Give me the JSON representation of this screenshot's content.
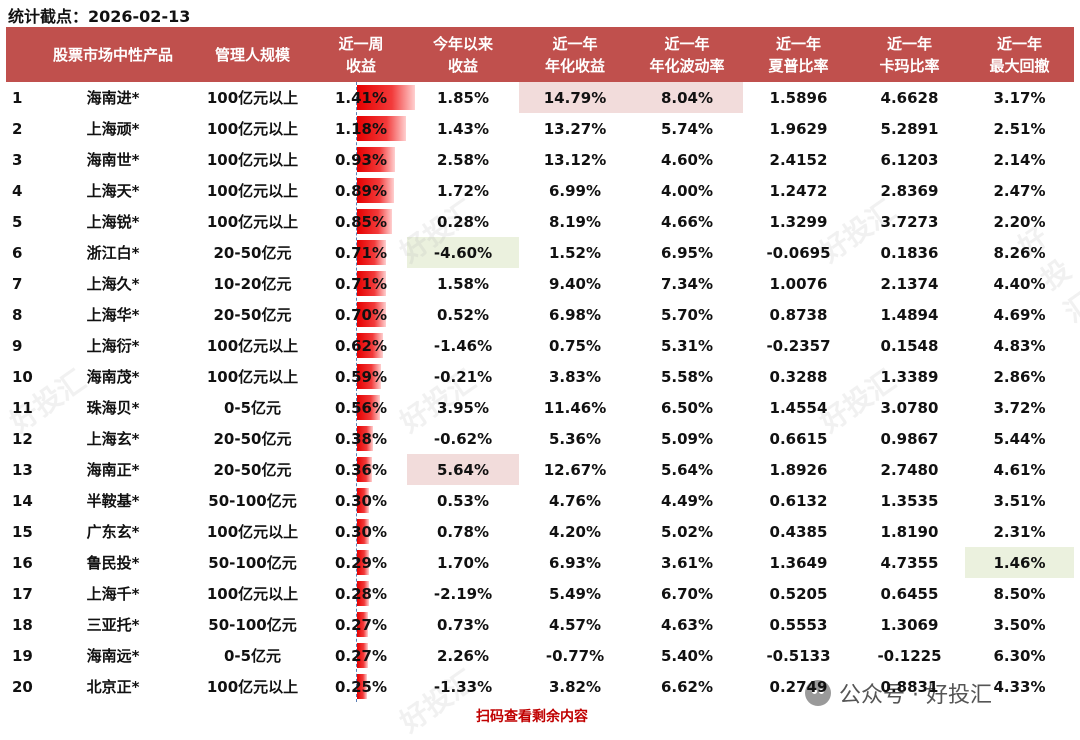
{
  "as_of": "统计截点：2026-02-13",
  "headers": [
    {
      "l1": "",
      "l2": ""
    },
    {
      "l1": "股票市场中性产品",
      "l2": ""
    },
    {
      "l1": "管理人规模",
      "l2": ""
    },
    {
      "l1": "近一周",
      "l2": "收益"
    },
    {
      "l1": "今年以来",
      "l2": "收益"
    },
    {
      "l1": "近一年",
      "l2": "年化收益"
    },
    {
      "l1": "近一年",
      "l2": "年化波动率"
    },
    {
      "l1": "近一年",
      "l2": "夏普比率"
    },
    {
      "l1": "近一年",
      "l2": "卡玛比率"
    },
    {
      "l1": "近一年",
      "l2": "最大回撤"
    }
  ],
  "rows": [
    {
      "rank": "1",
      "name": "海南进*",
      "scale": "100亿元以上",
      "week": "1.41%",
      "week_v": 1.41,
      "ytd": "1.85%",
      "ann_ret": "14.79%",
      "vol": "8.04%",
      "sharpe": "1.5896",
      "calmar": "4.6628",
      "mdd": "3.17%"
    },
    {
      "rank": "2",
      "name": "上海顽*",
      "scale": "100亿元以上",
      "week": "1.18%",
      "week_v": 1.18,
      "ytd": "1.43%",
      "ann_ret": "13.27%",
      "vol": "5.74%",
      "sharpe": "1.9629",
      "calmar": "5.2891",
      "mdd": "2.51%"
    },
    {
      "rank": "3",
      "name": "海南世*",
      "scale": "100亿元以上",
      "week": "0.93%",
      "week_v": 0.93,
      "ytd": "2.58%",
      "ann_ret": "13.12%",
      "vol": "4.60%",
      "sharpe": "2.4152",
      "calmar": "6.1203",
      "mdd": "2.14%"
    },
    {
      "rank": "4",
      "name": "上海天*",
      "scale": "100亿元以上",
      "week": "0.89%",
      "week_v": 0.89,
      "ytd": "1.72%",
      "ann_ret": "6.99%",
      "vol": "4.00%",
      "sharpe": "1.2472",
      "calmar": "2.8369",
      "mdd": "2.47%"
    },
    {
      "rank": "5",
      "name": "上海锐*",
      "scale": "100亿元以上",
      "week": "0.85%",
      "week_v": 0.85,
      "ytd": "0.28%",
      "ann_ret": "8.19%",
      "vol": "4.66%",
      "sharpe": "1.3299",
      "calmar": "3.7273",
      "mdd": "2.20%"
    },
    {
      "rank": "6",
      "name": "浙江白*",
      "scale": "20-50亿元",
      "week": "0.71%",
      "week_v": 0.71,
      "ytd": "-4.60%",
      "ann_ret": "1.52%",
      "vol": "6.95%",
      "sharpe": "-0.0695",
      "calmar": "0.1836",
      "mdd": "8.26%"
    },
    {
      "rank": "7",
      "name": "上海久*",
      "scale": "10-20亿元",
      "week": "0.71%",
      "week_v": 0.71,
      "ytd": "1.58%",
      "ann_ret": "9.40%",
      "vol": "7.34%",
      "sharpe": "1.0076",
      "calmar": "2.1374",
      "mdd": "4.40%"
    },
    {
      "rank": "8",
      "name": "上海华*",
      "scale": "20-50亿元",
      "week": "0.70%",
      "week_v": 0.7,
      "ytd": "0.52%",
      "ann_ret": "6.98%",
      "vol": "5.70%",
      "sharpe": "0.8738",
      "calmar": "1.4894",
      "mdd": "4.69%"
    },
    {
      "rank": "9",
      "name": "上海衍*",
      "scale": "100亿元以上",
      "week": "0.62%",
      "week_v": 0.62,
      "ytd": "-1.46%",
      "ann_ret": "0.75%",
      "vol": "5.31%",
      "sharpe": "-0.2357",
      "calmar": "0.1548",
      "mdd": "4.83%"
    },
    {
      "rank": "10",
      "name": "海南茂*",
      "scale": "100亿元以上",
      "week": "0.59%",
      "week_v": 0.59,
      "ytd": "-0.21%",
      "ann_ret": "3.83%",
      "vol": "5.58%",
      "sharpe": "0.3288",
      "calmar": "1.3389",
      "mdd": "2.86%"
    },
    {
      "rank": "11",
      "name": "珠海贝*",
      "scale": "0-5亿元",
      "week": "0.56%",
      "week_v": 0.56,
      "ytd": "3.95%",
      "ann_ret": "11.46%",
      "vol": "6.50%",
      "sharpe": "1.4554",
      "calmar": "3.0780",
      "mdd": "3.72%"
    },
    {
      "rank": "12",
      "name": "上海玄*",
      "scale": "20-50亿元",
      "week": "0.38%",
      "week_v": 0.38,
      "ytd": "-0.62%",
      "ann_ret": "5.36%",
      "vol": "5.09%",
      "sharpe": "0.6615",
      "calmar": "0.9867",
      "mdd": "5.44%"
    },
    {
      "rank": "13",
      "name": "海南正*",
      "scale": "20-50亿元",
      "week": "0.36%",
      "week_v": 0.36,
      "ytd": "5.64%",
      "ann_ret": "12.67%",
      "vol": "5.64%",
      "sharpe": "1.8926",
      "calmar": "2.7480",
      "mdd": "4.61%"
    },
    {
      "rank": "14",
      "name": "半鞍基*",
      "scale": "50-100亿元",
      "week": "0.30%",
      "week_v": 0.3,
      "ytd": "0.53%",
      "ann_ret": "4.76%",
      "vol": "4.49%",
      "sharpe": "0.6132",
      "calmar": "1.3535",
      "mdd": "3.51%"
    },
    {
      "rank": "15",
      "name": "广东玄*",
      "scale": "100亿元以上",
      "week": "0.30%",
      "week_v": 0.3,
      "ytd": "0.78%",
      "ann_ret": "4.20%",
      "vol": "5.02%",
      "sharpe": "0.4385",
      "calmar": "1.8190",
      "mdd": "2.31%"
    },
    {
      "rank": "16",
      "name": "鲁民投*",
      "scale": "50-100亿元",
      "week": "0.29%",
      "week_v": 0.29,
      "ytd": "1.70%",
      "ann_ret": "6.93%",
      "vol": "3.61%",
      "sharpe": "1.3649",
      "calmar": "4.7355",
      "mdd": "1.46%"
    },
    {
      "rank": "17",
      "name": "上海千*",
      "scale": "100亿元以上",
      "week": "0.28%",
      "week_v": 0.28,
      "ytd": "-2.19%",
      "ann_ret": "5.49%",
      "vol": "6.70%",
      "sharpe": "0.5205",
      "calmar": "0.6455",
      "mdd": "8.50%"
    },
    {
      "rank": "18",
      "name": "三亚托*",
      "scale": "50-100亿元",
      "week": "0.27%",
      "week_v": 0.27,
      "ytd": "0.73%",
      "ann_ret": "4.57%",
      "vol": "4.63%",
      "sharpe": "0.5553",
      "calmar": "1.3069",
      "mdd": "3.50%"
    },
    {
      "rank": "19",
      "name": "海南远*",
      "scale": "0-5亿元",
      "week": "0.27%",
      "week_v": 0.27,
      "ytd": "2.26%",
      "ann_ret": "-0.77%",
      "vol": "5.40%",
      "sharpe": "-0.5133",
      "calmar": "-0.1225",
      "mdd": "6.30%"
    },
    {
      "rank": "20",
      "name": "北京正*",
      "scale": "100亿元以上",
      "week": "0.25%",
      "week_v": 0.25,
      "ytd": "-1.33%",
      "ann_ret": "3.82%",
      "vol": "6.62%",
      "sharpe": "0.2749",
      "calmar": "0.8831",
      "mdd": "4.33%"
    }
  ],
  "highlights": {
    "pink": [
      "0.ann_ret",
      "0.vol",
      "12.ytd"
    ],
    "green": [
      "5.ytd",
      "15.mdd"
    ]
  },
  "colors": {
    "header_bg": "#c0504d",
    "bar_red": "#e60000",
    "highlight_pink": "#f2dcdb",
    "highlight_green": "#ebf1de",
    "footer_red": "#c00000"
  },
  "footer_note": "扫码查看剩余内容",
  "brand": {
    "icon": "wechat-icon",
    "text": "公众号 · 好投汇"
  },
  "watermark_text": "好投汇"
}
